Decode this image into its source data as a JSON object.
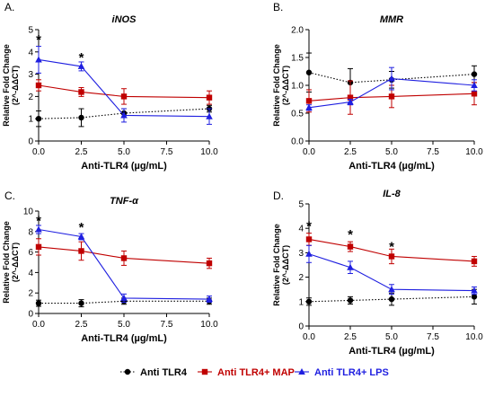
{
  "legend": {
    "items": [
      {
        "label": "Anti TLR4",
        "color": "#000000",
        "marker": "circle",
        "dash": "dotted"
      },
      {
        "label": "Anti TLR4+ MAP",
        "color": "#c00000",
        "marker": "square",
        "dash": "solid"
      },
      {
        "label": "Anti TLR4+ LPS",
        "color": "#1f1fe0",
        "marker": "triangle",
        "dash": "solid"
      }
    ]
  },
  "chart_data": [
    {
      "type": "line",
      "panel_label": "A.",
      "title": "iNOS",
      "xlabel": "Anti-TLR4 (µg/mL)",
      "ylabel": "Relative Fold Change",
      "ylabel2": "(2^-ΔΔCT)",
      "x": [
        0,
        2.5,
        5,
        10
      ],
      "xticks": [
        "0.0",
        "2.5",
        "5.0",
        "7.5",
        "10.0"
      ],
      "xlim": [
        0,
        10
      ],
      "yticks": [
        "0",
        "1",
        "2",
        "3",
        "4",
        "5"
      ],
      "ylim": [
        0,
        5
      ],
      "significance": [
        {
          "x": 0,
          "y": 4.55,
          "label": "*"
        },
        {
          "x": 2.5,
          "y": 3.75,
          "label": "*"
        }
      ],
      "series": [
        {
          "name": "Anti TLR4",
          "values": [
            1.0,
            1.05,
            1.25,
            1.45
          ],
          "errors": [
            0.35,
            0.4,
            0.2,
            0.15
          ]
        },
        {
          "name": "Anti TLR4+ MAP",
          "values": [
            2.5,
            2.2,
            2.0,
            1.95
          ],
          "errors": [
            0.25,
            0.2,
            0.35,
            0.3
          ]
        },
        {
          "name": "Anti TLR4+ LPS",
          "values": [
            3.65,
            3.35,
            1.15,
            1.1
          ],
          "errors": [
            0.6,
            0.2,
            0.3,
            0.35
          ]
        }
      ]
    },
    {
      "type": "line",
      "panel_label": "B.",
      "title": "MMR",
      "xlabel": "Anti-TLR4 (µg/mL)",
      "ylabel": "Relative Fold Change",
      "ylabel2": "(2^-ΔΔCT)",
      "x": [
        0,
        2.5,
        5,
        10
      ],
      "xticks": [
        "0.0",
        "2.5",
        "5.0",
        "7.5",
        "10.0"
      ],
      "xlim": [
        0,
        10
      ],
      "yticks": [
        "0.0",
        "0.5",
        "1.0",
        "1.5",
        "2.0"
      ],
      "ylim": [
        0,
        2
      ],
      "significance": [],
      "series": [
        {
          "name": "Anti TLR4",
          "values": [
            1.23,
            1.05,
            1.1,
            1.2
          ],
          "errors": [
            0.35,
            0.25,
            0.15,
            0.15
          ]
        },
        {
          "name": "Anti TLR4+ MAP",
          "values": [
            0.72,
            0.78,
            0.8,
            0.85
          ],
          "errors": [
            0.2,
            0.3,
            0.2,
            0.2
          ]
        },
        {
          "name": "Anti TLR4+ LPS",
          "values": [
            0.6,
            0.7,
            1.12,
            1.0
          ],
          "errors": [
            0.05,
            0.05,
            0.2,
            0.1
          ]
        }
      ]
    },
    {
      "type": "line",
      "panel_label": "C.",
      "title": "TNF-α",
      "xlabel": "Anti-TLR4 (µg/mL)",
      "ylabel": "Relative Fold Change",
      "ylabel2": "(2^-ΔΔCT)",
      "x": [
        0,
        2.5,
        5,
        10
      ],
      "xticks": [
        "0.0",
        "2.5",
        "5.0",
        "7.5",
        "10.0"
      ],
      "xlim": [
        0,
        10
      ],
      "yticks": [
        "0",
        "2",
        "4",
        "6",
        "8",
        "10"
      ],
      "ylim": [
        0,
        10
      ],
      "significance": [
        {
          "x": 0,
          "y": 9.1,
          "label": "*"
        },
        {
          "x": 2.5,
          "y": 8.4,
          "label": "*"
        }
      ],
      "series": [
        {
          "name": "Anti TLR4",
          "values": [
            1.0,
            1.0,
            1.2,
            1.2
          ],
          "errors": [
            0.3,
            0.35,
            0.3,
            0.3
          ]
        },
        {
          "name": "Anti TLR4+ MAP",
          "values": [
            6.5,
            6.1,
            5.4,
            4.9
          ],
          "errors": [
            0.8,
            0.9,
            0.7,
            0.5
          ]
        },
        {
          "name": "Anti TLR4+ LPS",
          "values": [
            8.2,
            7.5,
            1.5,
            1.4
          ],
          "errors": [
            0.4,
            0.3,
            0.4,
            0.3
          ]
        }
      ]
    },
    {
      "type": "line",
      "panel_label": "D.",
      "title": "IL-8",
      "xlabel": "Anti-TLR4 (µg/mL)",
      "ylabel": "Relative Fold Change",
      "ylabel2": "(2^-ΔΔCT)",
      "x": [
        0,
        2.5,
        5,
        10
      ],
      "xticks": [
        "0.0",
        "2.5",
        "5.0",
        "7.5",
        "10.0"
      ],
      "xlim": [
        0,
        10
      ],
      "yticks": [
        "0",
        "1",
        "2",
        "3",
        "4",
        "5"
      ],
      "ylim": [
        0,
        5
      ],
      "significance": [
        {
          "x": 0,
          "y": 4.1,
          "label": "*"
        },
        {
          "x": 2.5,
          "y": 3.75,
          "label": "*"
        },
        {
          "x": 5,
          "y": 3.25,
          "label": "*"
        }
      ],
      "series": [
        {
          "name": "Anti TLR4",
          "values": [
            1.0,
            1.05,
            1.1,
            1.2
          ],
          "errors": [
            0.15,
            0.15,
            0.25,
            0.3
          ]
        },
        {
          "name": "Anti TLR4+ MAP",
          "values": [
            3.55,
            3.25,
            2.85,
            2.65
          ],
          "errors": [
            0.25,
            0.2,
            0.3,
            0.2
          ]
        },
        {
          "name": "Anti TLR4+ LPS",
          "values": [
            2.95,
            2.4,
            1.5,
            1.45
          ],
          "errors": [
            0.35,
            0.25,
            0.2,
            0.15
          ]
        }
      ]
    }
  ]
}
